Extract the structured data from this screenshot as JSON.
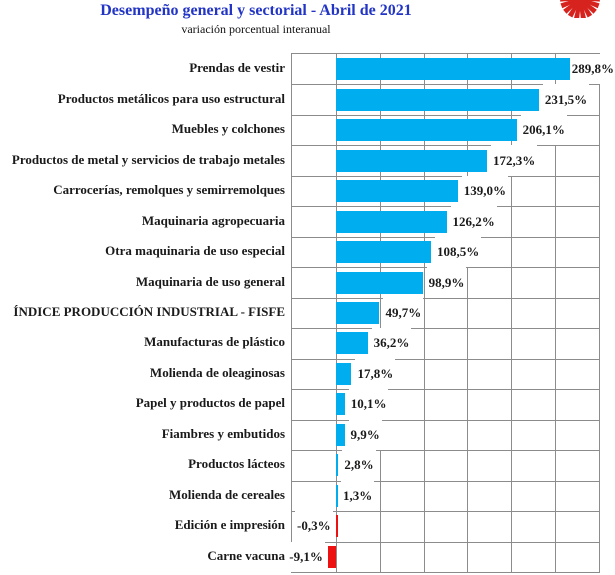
{
  "chart_data": {
    "type": "bar",
    "orientation": "horizontal",
    "title": "Desempeño general y sectorial - Abril de 2021",
    "subtitle": "variación porcentual interanual",
    "categories": [
      "Prendas de vestir",
      "Productos metálicos para uso estructural",
      "Muebles y colchones",
      "Productos de metal y servicios de trabajo metales",
      "Carrocerías, remolques y semirremolques",
      "Maquinaria agropecuaria",
      "Otra maquinaria de uso especial",
      "Maquinaria de uso general",
      "ÍNDICE PRODUCCIÓN INDUSTRIAL - FISFE",
      "Manufacturas de plástico",
      "Molienda de oleaginosas",
      "Papel y productos de papel",
      "Fiambres y embutidos",
      "Productos lácteos",
      "Molienda de cereales",
      "Edición e impresión",
      "Carne vacuna"
    ],
    "values": [
      289.8,
      231.5,
      206.1,
      172.3,
      139.0,
      126.2,
      108.5,
      98.9,
      49.7,
      36.2,
      17.8,
      10.1,
      9.9,
      2.8,
      1.3,
      -0.3,
      -9.1
    ],
    "value_labels": [
      "289,8%",
      "231,5%",
      "206,1%",
      "172,3%",
      "139,0%",
      "126,2%",
      "108,5%",
      "98,9%",
      "49,7%",
      "36,2%",
      "17,8%",
      "10,1%",
      "9,9%",
      "2,8%",
      "1,3%",
      "-0,3%",
      "-9,1%"
    ],
    "xlim": [
      -50,
      300
    ],
    "grid_step": 50,
    "grid_on": true,
    "legend": "none",
    "colors": {
      "positive_bar": "#00aeef",
      "negative_bar": "#ee1111",
      "gridline": "#8c8c8c",
      "title": "#2235c4",
      "label_text": "#1a1a1a"
    },
    "logo": "fisfe-gear-logo",
    "logo_color": "#d7231e"
  }
}
